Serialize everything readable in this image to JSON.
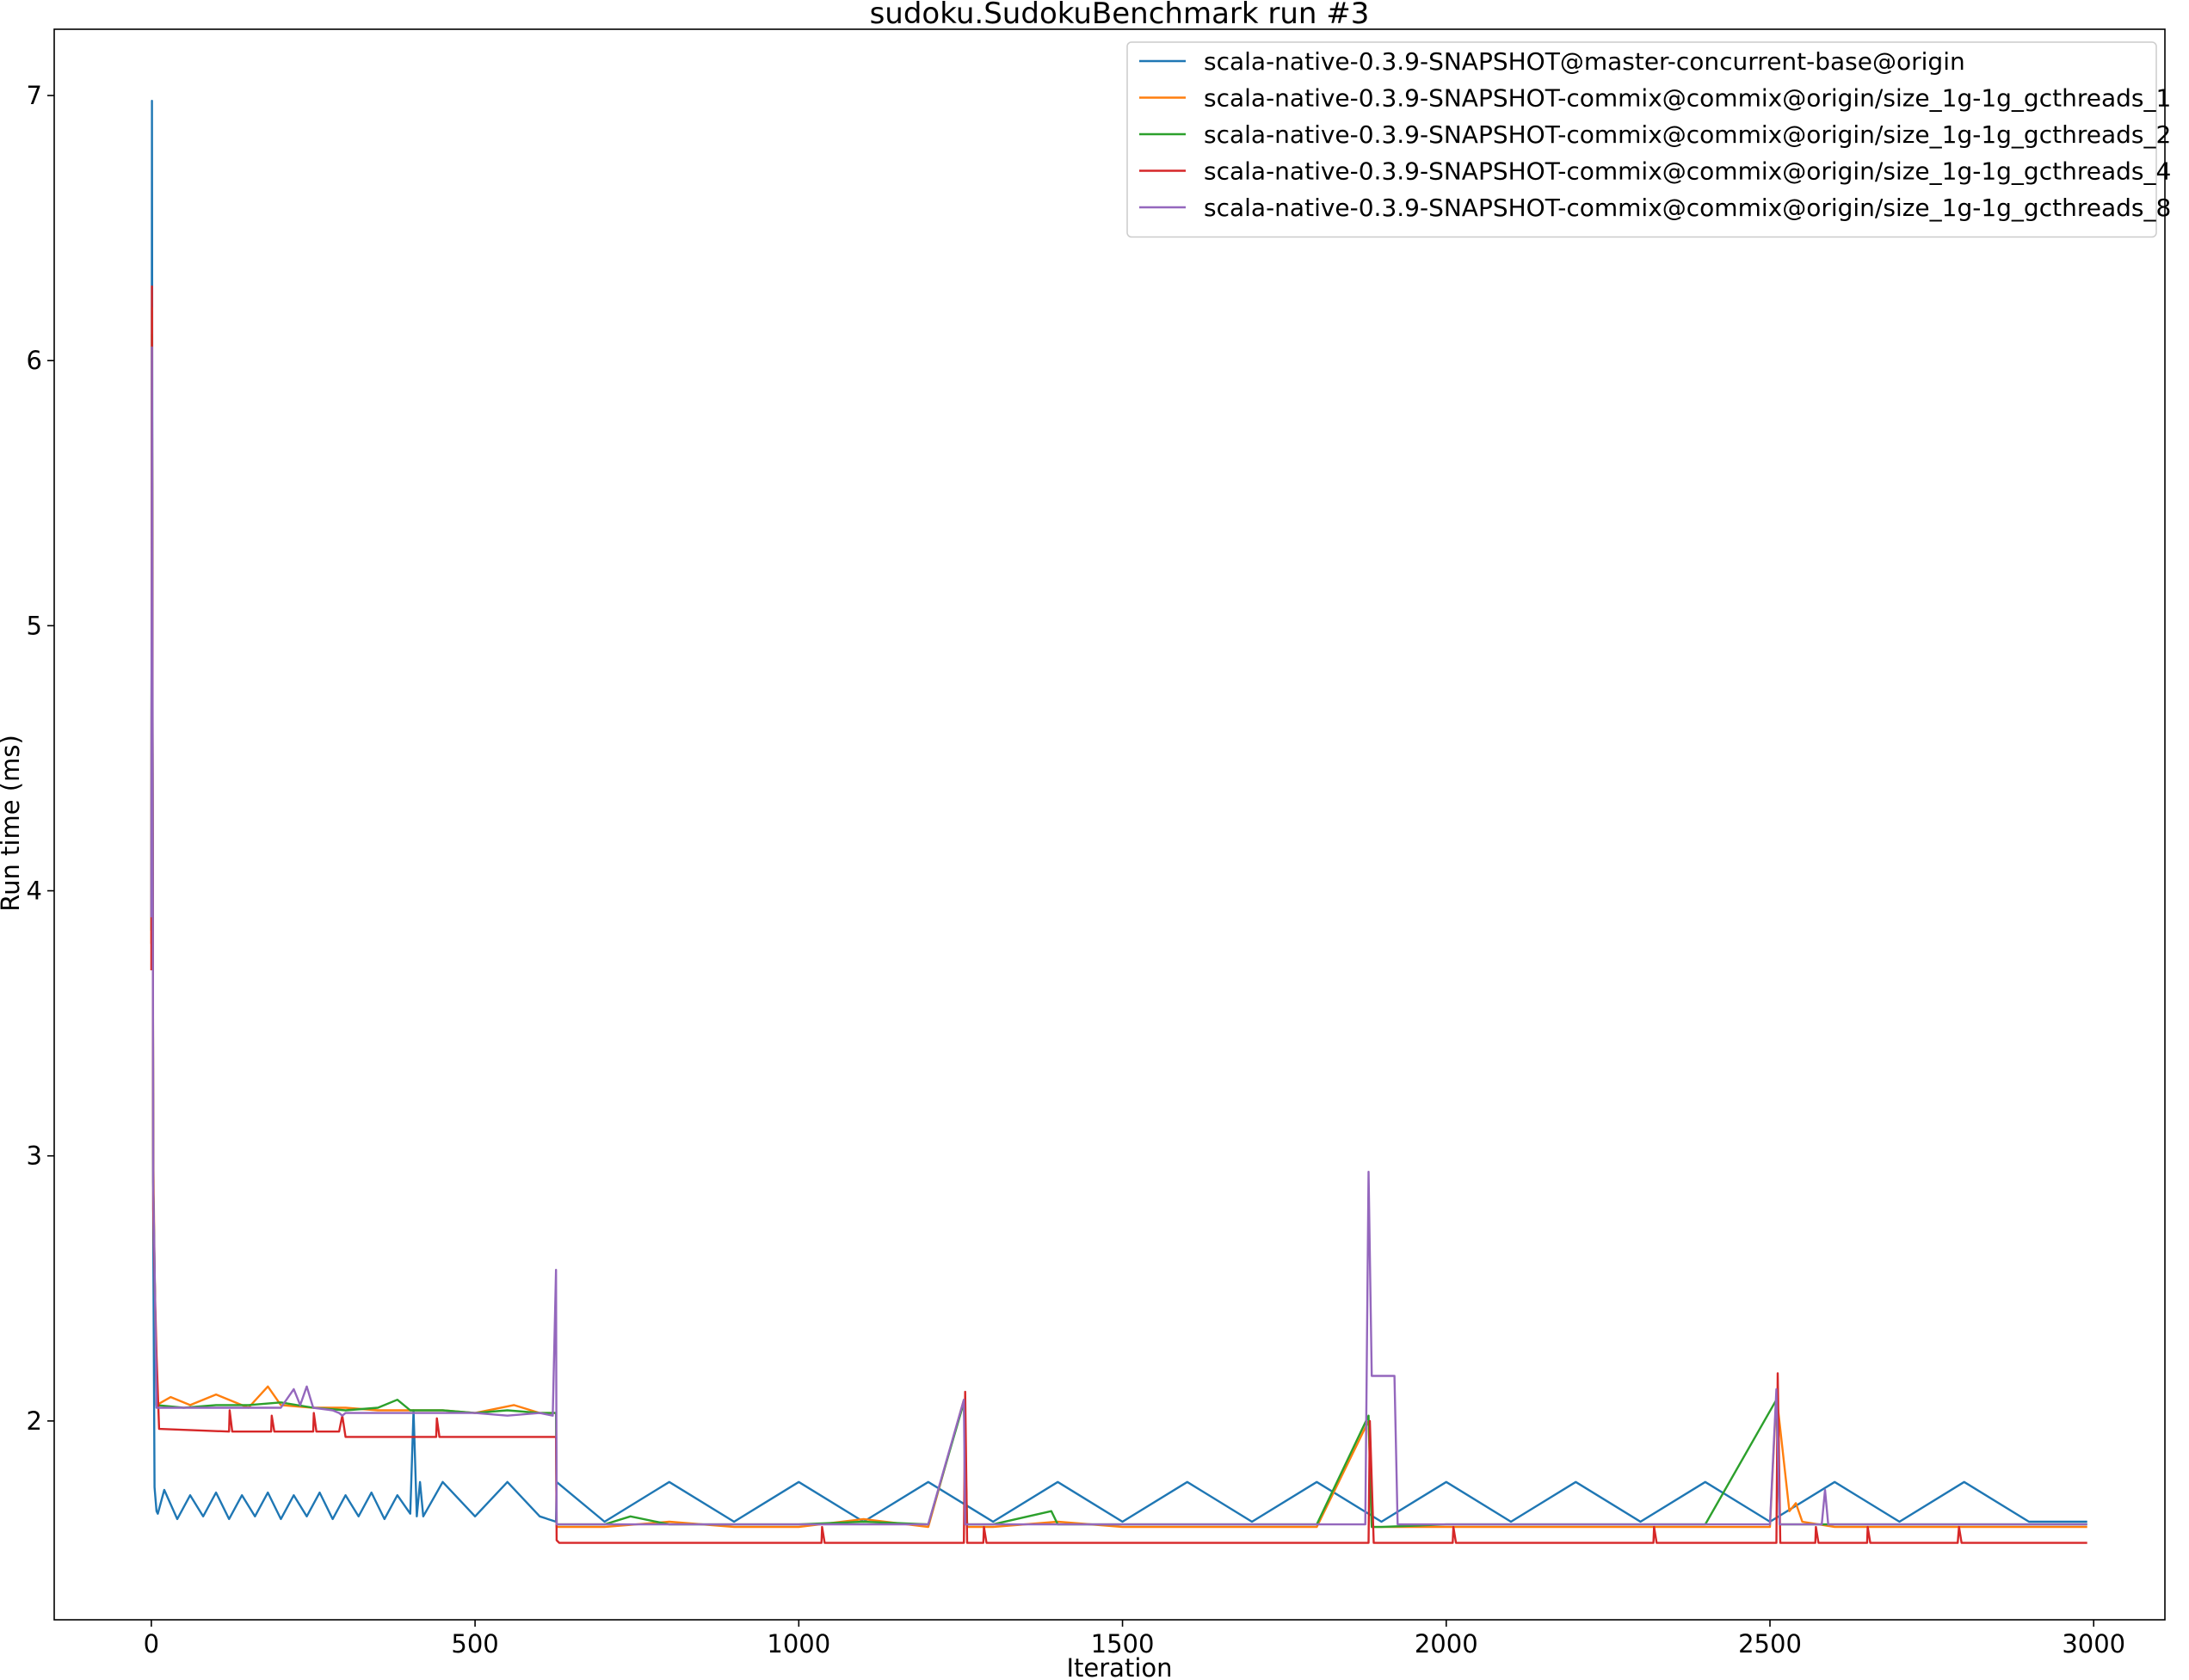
{
  "chart_data": {
    "type": "line",
    "title": "sudoku.SudokuBenchmark run #3",
    "xlabel": "Iteration",
    "ylabel": "Run time (ms)",
    "xlim": [
      -150,
      3110
    ],
    "ylim": [
      1.25,
      7.25
    ],
    "xticks": [
      0,
      500,
      1000,
      1500,
      2000,
      2500,
      3000
    ],
    "yticks": [
      2,
      3,
      4,
      5,
      6,
      7
    ],
    "grid": false,
    "legend_position": "top-right",
    "series": [
      {
        "name": "scala-native-0.3.9-SNAPSHOT@master-concurrent-base@origin",
        "color": "#1f77b4",
        "x": [
          0,
          1,
          2,
          3,
          5,
          8,
          10,
          20,
          40,
          60,
          80,
          100,
          120,
          140,
          160,
          180,
          200,
          220,
          240,
          260,
          280,
          300,
          320,
          340,
          360,
          380,
          400,
          405,
          410,
          415,
          420,
          450,
          500,
          550,
          600,
          625,
          626,
          700,
          800,
          900,
          1000,
          1100,
          1200,
          1300,
          1400,
          1500,
          1600,
          1700,
          1800,
          1900,
          2000,
          2100,
          2200,
          2300,
          2400,
          2500,
          2600,
          2700,
          2800,
          2900,
          2990
        ],
        "y": [
          3.9,
          6.98,
          4.5,
          2.7,
          1.75,
          1.66,
          1.65,
          1.74,
          1.63,
          1.72,
          1.64,
          1.73,
          1.63,
          1.72,
          1.64,
          1.73,
          1.63,
          1.72,
          1.64,
          1.73,
          1.63,
          1.72,
          1.64,
          1.73,
          1.63,
          1.72,
          1.65,
          2.04,
          1.64,
          1.77,
          1.64,
          1.77,
          1.64,
          1.77,
          1.64,
          1.62,
          1.77,
          1.62,
          1.77,
          1.62,
          1.77,
          1.62,
          1.77,
          1.62,
          1.77,
          1.62,
          1.77,
          1.62,
          1.77,
          1.62,
          1.77,
          1.62,
          1.77,
          1.62,
          1.77,
          1.62,
          1.77,
          1.62,
          1.77,
          1.62,
          1.62
        ]
      },
      {
        "name": "scala-native-0.3.9-SNAPSHOT-commix@commix@origin/size_1g-1g_gcthreads_1",
        "color": "#ff7f0e",
        "x": [
          0,
          1,
          3,
          5,
          8,
          30,
          60,
          100,
          150,
          180,
          200,
          250,
          300,
          350,
          400,
          450,
          500,
          560,
          600,
          625,
          626,
          700,
          800,
          900,
          1000,
          1100,
          1200,
          1255,
          1260,
          1300,
          1400,
          1500,
          1600,
          1700,
          1800,
          1880,
          1885,
          1900,
          2000,
          2100,
          2200,
          2300,
          2400,
          2500,
          2510,
          2530,
          2540,
          2550,
          2600,
          2700,
          2800,
          2900,
          2990
        ],
        "y": [
          3.8,
          6.2,
          3.0,
          2.6,
          2.06,
          2.09,
          2.06,
          2.1,
          2.05,
          2.13,
          2.06,
          2.05,
          2.05,
          2.04,
          2.04,
          2.04,
          2.03,
          2.06,
          2.03,
          2.03,
          1.6,
          1.6,
          1.62,
          1.6,
          1.6,
          1.63,
          1.6,
          2.08,
          1.6,
          1.6,
          1.62,
          1.6,
          1.6,
          1.6,
          1.6,
          2.0,
          1.6,
          1.6,
          1.6,
          1.6,
          1.6,
          1.6,
          1.6,
          1.6,
          2.1,
          1.66,
          1.69,
          1.62,
          1.6,
          1.6,
          1.6,
          1.6,
          1.6
        ]
      },
      {
        "name": "scala-native-0.3.9-SNAPSHOT-commix@commix@origin/size_1g-1g_gcthreads_2",
        "color": "#2ca02c",
        "x": [
          0,
          1,
          3,
          5,
          8,
          50,
          100,
          150,
          200,
          250,
          300,
          350,
          380,
          400,
          450,
          500,
          550,
          600,
          625,
          626,
          700,
          740,
          800,
          900,
          1000,
          1100,
          1200,
          1255,
          1260,
          1300,
          1390,
          1400,
          1500,
          1600,
          1700,
          1800,
          1880,
          1885,
          1900,
          2000,
          2100,
          2200,
          2300,
          2400,
          2510,
          2515,
          2600,
          2700,
          2800,
          2900,
          2990
        ],
        "y": [
          3.85,
          6.1,
          2.9,
          2.58,
          2.06,
          2.05,
          2.06,
          2.06,
          2.07,
          2.05,
          2.04,
          2.05,
          2.08,
          2.04,
          2.04,
          2.03,
          2.04,
          2.03,
          2.03,
          1.61,
          1.61,
          1.64,
          1.61,
          1.61,
          1.61,
          1.62,
          1.61,
          2.07,
          1.61,
          1.61,
          1.66,
          1.61,
          1.61,
          1.61,
          1.61,
          1.61,
          2.02,
          1.6,
          1.6,
          1.61,
          1.61,
          1.61,
          1.61,
          1.61,
          2.08,
          1.61,
          1.61,
          1.61,
          1.61,
          1.61,
          1.61
        ]
      },
      {
        "name": "scala-native-0.3.9-SNAPSHOT-commix@commix@origin/size_1g-1g_gcthreads_4",
        "color": "#d62728",
        "x": [
          0,
          1,
          3,
          5,
          8,
          12,
          120,
          121,
          125,
          185,
          186,
          190,
          250,
          251,
          255,
          290,
          295,
          300,
          440,
          441,
          445,
          620,
          625,
          626,
          630,
          1035,
          1036,
          1040,
          1255,
          1257,
          1260,
          1285,
          1286,
          1290,
          1880,
          1882,
          1888,
          2010,
          2011,
          2015,
          2320,
          2321,
          2325,
          2510,
          2512,
          2516,
          2570,
          2571,
          2575,
          2650,
          2651,
          2655,
          2790,
          2792,
          2796,
          2990
        ],
        "y": [
          3.7,
          6.28,
          2.8,
          2.55,
          2.25,
          1.97,
          1.96,
          2.04,
          1.96,
          1.96,
          2.02,
          1.96,
          1.96,
          2.03,
          1.96,
          1.96,
          2.02,
          1.94,
          1.94,
          2.01,
          1.94,
          1.94,
          1.94,
          1.55,
          1.54,
          1.54,
          1.6,
          1.54,
          1.54,
          2.11,
          1.54,
          1.54,
          1.6,
          1.54,
          1.54,
          2.0,
          1.54,
          1.54,
          1.6,
          1.54,
          1.54,
          1.6,
          1.54,
          1.54,
          2.18,
          1.54,
          1.54,
          1.6,
          1.54,
          1.54,
          1.6,
          1.54,
          1.54,
          1.6,
          1.54,
          1.54
        ]
      },
      {
        "name": "scala-native-0.3.9-SNAPSHOT-commix@commix@origin/size_1g-1g_gcthreads_8",
        "color": "#9467bd",
        "x": [
          0,
          1,
          3,
          5,
          8,
          50,
          100,
          150,
          200,
          220,
          230,
          240,
          250,
          280,
          290,
          295,
          300,
          350,
          400,
          450,
          500,
          550,
          600,
          620,
          625,
          626,
          700,
          800,
          900,
          1000,
          1100,
          1200,
          1255,
          1257,
          1260,
          1300,
          1400,
          1500,
          1600,
          1700,
          1800,
          1875,
          1880,
          1885,
          1920,
          1925,
          2000,
          2100,
          2200,
          2300,
          2400,
          2500,
          2510,
          2515,
          2580,
          2585,
          2590,
          2700,
          2800,
          2900,
          2990
        ],
        "y": [
          3.9,
          6.05,
          2.9,
          2.6,
          2.05,
          2.05,
          2.05,
          2.05,
          2.05,
          2.12,
          2.06,
          2.13,
          2.05,
          2.04,
          2.03,
          2.02,
          2.03,
          2.03,
          2.03,
          2.03,
          2.03,
          2.02,
          2.03,
          2.02,
          2.57,
          1.61,
          1.61,
          1.61,
          1.61,
          1.61,
          1.61,
          1.61,
          2.08,
          1.61,
          1.61,
          1.61,
          1.61,
          1.61,
          1.61,
          1.61,
          1.61,
          1.61,
          2.94,
          2.17,
          2.17,
          1.61,
          1.61,
          1.61,
          1.61,
          1.61,
          1.61,
          1.61,
          2.12,
          1.61,
          1.61,
          1.74,
          1.61,
          1.61,
          1.61,
          1.61,
          1.61
        ]
      }
    ]
  }
}
